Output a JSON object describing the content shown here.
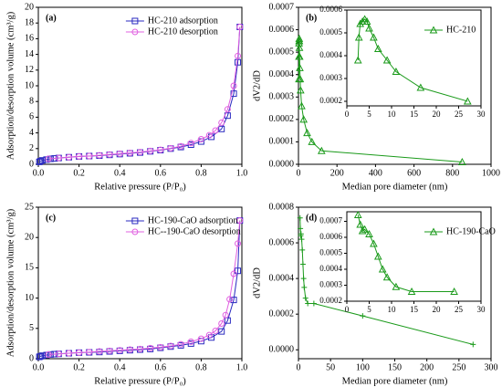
{
  "chart_data": [
    {
      "type": "line",
      "label": "(a)",
      "xlabel": "Relative pressure (P/P₀)",
      "ylabel": "Adsorption/desorption volume (cm³/g)",
      "xlim": [
        0,
        1.0
      ],
      "ylim": [
        0,
        20
      ],
      "xticks": [
        {
          "value": 0,
          "label": "0.0"
        },
        {
          "value": 0.2,
          "label": "0.2"
        },
        {
          "value": 0.4,
          "label": "0.4"
        },
        {
          "value": 0.6,
          "label": "0.6"
        },
        {
          "value": 0.8,
          "label": "0.8"
        },
        {
          "value": 1.0,
          "label": "1.0"
        }
      ],
      "yticks": [
        0,
        2,
        4,
        6,
        8,
        10,
        12,
        14,
        16,
        18,
        20
      ],
      "legend": "upper right",
      "series": [
        {
          "name": "HC-210 adsorption",
          "color": "#2a2ac0",
          "marker": "square",
          "x": [
            0.005,
            0.01,
            0.02,
            0.04,
            0.06,
            0.08,
            0.1,
            0.15,
            0.2,
            0.25,
            0.3,
            0.35,
            0.4,
            0.45,
            0.5,
            0.55,
            0.6,
            0.65,
            0.7,
            0.75,
            0.8,
            0.85,
            0.9,
            0.93,
            0.96,
            0.98,
            0.99
          ],
          "values": [
            0.3,
            0.4,
            0.5,
            0.6,
            0.7,
            0.75,
            0.8,
            0.9,
            1.0,
            1.05,
            1.1,
            1.2,
            1.3,
            1.4,
            1.5,
            1.65,
            1.8,
            2.0,
            2.2,
            2.5,
            2.9,
            3.5,
            4.5,
            6.2,
            9.0,
            13.0,
            17.5
          ]
        },
        {
          "name": "HC-210 desorption",
          "color": "#e060e0",
          "marker": "circle",
          "x": [
            0.99,
            0.98,
            0.96,
            0.93,
            0.9,
            0.87,
            0.84,
            0.8,
            0.75,
            0.7,
            0.65,
            0.6,
            0.55,
            0.5,
            0.45,
            0.4,
            0.35,
            0.3,
            0.25,
            0.2,
            0.15,
            0.1,
            0.05
          ],
          "values": [
            17.5,
            13.8,
            10.0,
            7.0,
            5.3,
            4.3,
            3.7,
            3.2,
            2.7,
            2.3,
            2.05,
            1.85,
            1.7,
            1.55,
            1.45,
            1.35,
            1.25,
            1.15,
            1.05,
            1.0,
            0.9,
            0.8,
            0.7
          ]
        }
      ]
    },
    {
      "type": "line",
      "label": "(b)",
      "xlabel": "Median pore diameter (nm)",
      "ylabel": "dV2/dD",
      "xlim": [
        0,
        1000
      ],
      "ylim": [
        0,
        0.0007
      ],
      "xticks": [
        0,
        200,
        400,
        600,
        800,
        1000
      ],
      "yticks": [
        {
          "value": 0,
          "label": "0.0000"
        },
        {
          "value": 0.0001,
          "label": "0.0001"
        },
        {
          "value": 0.0002,
          "label": "0.0002"
        },
        {
          "value": 0.0003,
          "label": "0.0003"
        },
        {
          "value": 0.0004,
          "label": "0.0004"
        },
        {
          "value": 0.0005,
          "label": "0.0005"
        },
        {
          "value": 0.0006,
          "label": "0.0006"
        },
        {
          "value": 0.0007,
          "label": "0.0007"
        }
      ],
      "series": [
        {
          "name": "HC-210",
          "color": "#1a9a1a",
          "marker": "triangle",
          "x": [
            2.5,
            2.7,
            3,
            3.5,
            4,
            4.5,
            5,
            6,
            7,
            9,
            11,
            16.5,
            27,
            45,
            70,
            120,
            850
          ],
          "values": [
            0.00038,
            0.00048,
            0.00054,
            0.00055,
            0.00056,
            0.00055,
            0.00052,
            0.00048,
            0.00043,
            0.00038,
            0.00033,
            0.00026,
            0.0002,
            0.00014,
            0.0001,
            6e-05,
            1e-05
          ]
        }
      ]
    },
    {
      "type": "line",
      "xlim": [
        0,
        30
      ],
      "ylim": [
        0.00018,
        0.0006
      ],
      "xticks": [
        0,
        5,
        10,
        15,
        20,
        25,
        30
      ],
      "yticks": [
        {
          "value": 0.0002,
          "label": "0.0002"
        },
        {
          "value": 0.0003,
          "label": "0.0003"
        },
        {
          "value": 0.0004,
          "label": "0.0004"
        },
        {
          "value": 0.0005,
          "label": "0.0005"
        },
        {
          "value": 0.0006,
          "label": "0.0006"
        }
      ],
      "legend": "upper right",
      "series": [
        {
          "name": "HC-210",
          "color": "#1a9a1a",
          "marker": "triangle",
          "x": [
            2.5,
            2.7,
            3,
            3.5,
            4,
            4.5,
            5,
            6,
            7,
            9,
            11,
            16.5,
            27
          ],
          "values": [
            0.00038,
            0.00048,
            0.00054,
            0.00055,
            0.00056,
            0.00055,
            0.00052,
            0.00048,
            0.00043,
            0.00038,
            0.00033,
            0.00026,
            0.0002
          ]
        }
      ]
    },
    {
      "type": "line",
      "label": "(c)",
      "xlabel": "Relative pressure (P/P₀)",
      "ylabel": "Adsorption/desorption volume (cm³/g)",
      "xlim": [
        0,
        1.0
      ],
      "ylim": [
        0,
        25
      ],
      "xticks": [
        {
          "value": 0,
          "label": "0.0"
        },
        {
          "value": 0.2,
          "label": "0.2"
        },
        {
          "value": 0.4,
          "label": "0.4"
        },
        {
          "value": 0.6,
          "label": "0.6"
        },
        {
          "value": 0.8,
          "label": "0.8"
        },
        {
          "value": 1.0,
          "label": "1.0"
        }
      ],
      "yticks": [
        0,
        5,
        10,
        15,
        20,
        25
      ],
      "legend": "upper right",
      "series": [
        {
          "name": "HC-190-CaO adsorption",
          "color": "#2a2ac0",
          "marker": "square",
          "x": [
            0.005,
            0.01,
            0.02,
            0.04,
            0.06,
            0.08,
            0.1,
            0.15,
            0.2,
            0.25,
            0.3,
            0.35,
            0.4,
            0.45,
            0.5,
            0.55,
            0.6,
            0.65,
            0.7,
            0.75,
            0.8,
            0.85,
            0.9,
            0.93,
            0.96,
            0.98,
            0.99
          ],
          "values": [
            0.3,
            0.4,
            0.5,
            0.6,
            0.7,
            0.75,
            0.8,
            0.9,
            1.0,
            1.05,
            1.1,
            1.2,
            1.3,
            1.4,
            1.5,
            1.6,
            1.8,
            2.0,
            2.2,
            2.5,
            2.9,
            3.5,
            4.5,
            6.3,
            9.7,
            14.5,
            22.8
          ]
        },
        {
          "name": "HC--190-CaO desorption",
          "color": "#e060e0",
          "marker": "circle",
          "x": [
            0.99,
            0.98,
            0.96,
            0.94,
            0.92,
            0.9,
            0.87,
            0.84,
            0.8,
            0.75,
            0.7,
            0.65,
            0.6,
            0.55,
            0.5,
            0.45,
            0.4,
            0.35,
            0.3,
            0.25,
            0.2,
            0.15,
            0.1,
            0.05
          ],
          "values": [
            22.8,
            19.0,
            14.0,
            9.8,
            7.2,
            5.8,
            4.6,
            3.9,
            3.3,
            2.8,
            2.4,
            2.1,
            1.9,
            1.75,
            1.6,
            1.5,
            1.4,
            1.3,
            1.2,
            1.1,
            1.0,
            0.9,
            0.8,
            0.7
          ]
        }
      ]
    },
    {
      "type": "line",
      "label": "(d)",
      "xlabel": "Median pore diameter (nm)",
      "ylabel": "dV2/dD",
      "xlim": [
        0,
        300
      ],
      "ylim": [
        -5e-05,
        0.0008
      ],
      "xticks": [
        0,
        50,
        100,
        150,
        200,
        250,
        300
      ],
      "yticks": [
        {
          "value": 0,
          "label": "0.0000"
        },
        {
          "value": 0.0002,
          "label": "0.0002"
        },
        {
          "value": 0.0004,
          "label": "0.0004"
        },
        {
          "value": 0.0006,
          "label": "0.0006"
        },
        {
          "value": 0.0008,
          "label": "0.0008"
        }
      ],
      "series": [
        {
          "name": "HC-190-CaO",
          "color": "#1a9a1a",
          "marker": "plus",
          "x": [
            2.5,
            3,
            3.5,
            4,
            5,
            6,
            7,
            8,
            9,
            11,
            14.5,
            24,
            100,
            272
          ],
          "values": [
            0.00074,
            0.00068,
            0.00064,
            0.00065,
            0.00062,
            0.00056,
            0.00048,
            0.0004,
            0.00035,
            0.00029,
            0.00026,
            0.00026,
            0.00019,
            3e-05
          ]
        }
      ]
    },
    {
      "type": "line",
      "xlim": [
        0,
        30
      ],
      "ylim": [
        0.0002,
        0.00076
      ],
      "xticks": [
        0,
        5,
        10,
        15,
        20,
        25,
        30
      ],
      "yticks": [
        {
          "value": 0.0002,
          "label": "0.0002"
        },
        {
          "value": 0.0003,
          "label": "0.0003"
        },
        {
          "value": 0.0004,
          "label": "0.0004"
        },
        {
          "value": 0.0005,
          "label": "0.0005"
        },
        {
          "value": 0.0006,
          "label": "0.0006"
        },
        {
          "value": 0.0007,
          "label": "0.0007"
        }
      ],
      "legend": "upper right",
      "series": [
        {
          "name": "HC-190-CaO",
          "color": "#1a9a1a",
          "marker": "triangle",
          "x": [
            2.5,
            3,
            3.5,
            4,
            5,
            6,
            7,
            8,
            9,
            11,
            14.5,
            24
          ],
          "values": [
            0.00074,
            0.00068,
            0.00064,
            0.00065,
            0.00062,
            0.00056,
            0.00048,
            0.0004,
            0.00035,
            0.00029,
            0.00026,
            0.00026
          ]
        }
      ]
    }
  ]
}
